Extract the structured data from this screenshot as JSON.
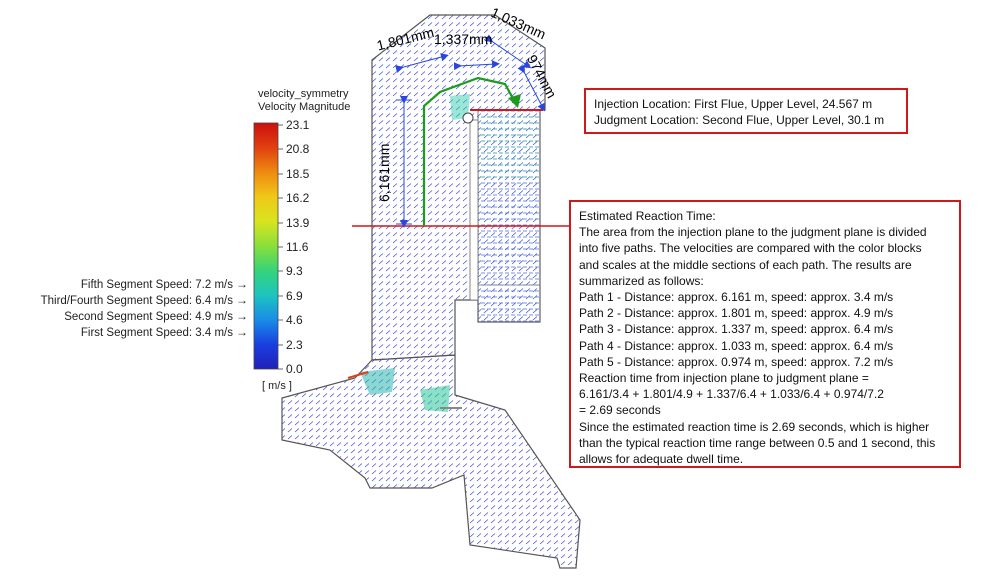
{
  "colorbar": {
    "title_line1": "velocity_symmetry",
    "title_line2": "Velocity Magnitude",
    "unit": "[ m/s ]",
    "ticks": [
      "23.1",
      "20.8",
      "18.5",
      "16.2",
      "13.9",
      "11.6",
      "9.3",
      "6.9",
      "4.6",
      "2.3",
      "0.0"
    ],
    "stops": [
      "#cc1010",
      "#e04010",
      "#ee8a10",
      "#f0c818",
      "#d8e420",
      "#8adf3a",
      "#35d47a",
      "#1ec4c0",
      "#1a8ce8",
      "#1a3fe0",
      "#2020b8"
    ]
  },
  "segment_speeds": [
    "Fifth Segment Speed: 7.2 m/s",
    "Third/Fourth Segment Speed: 6.4 m/s",
    "Second Segment Speed: 4.9 m/s",
    "First Segment Speed: 3.4 m/s"
  ],
  "dimensions": {
    "d1": "1,801mm",
    "d2": "1,337mm",
    "d3": "1,033mm",
    "d4": "974mm",
    "d5": "6,161mm"
  },
  "locations": {
    "injection": "Injection Location: First Flue, Upper Level, 24.567 m",
    "judgment": "Judgment Location: Second Flue, Upper Level, 30.1 m"
  },
  "reaction": {
    "lines": [
      "Estimated Reaction Time:",
      "The area from the injection plane to the judgment plane is divided",
      "into five paths. The velocities are compared with the color blocks",
      "and scales at the middle sections of each path. The results are",
      "summarized as follows:",
      "Path 1 - Distance: approx. 6.161 m, speed: approx. 3.4 m/s",
      "Path 2 - Distance: approx. 1.801 m, speed: approx. 4.9 m/s",
      "Path 3 - Distance: approx. 1.337 m, speed: approx. 6.4 m/s",
      "Path 4 - Distance: approx. 1.033 m, speed: approx. 6.4 m/s",
      "Path 5 - Distance: approx. 0.974 m, speed: approx. 7.2 m/s",
      "Reaction time from injection plane to judgment plane =",
      "6.161/3.4 + 1.801/4.9 + 1.337/6.4 + 1.033/6.4 + 0.974/7.2",
      "= 2.69 seconds",
      "Since the estimated reaction time is 2.69 seconds, which is higher",
      "than the typical reaction time range between 0.5 and 1 second, this",
      "allows for adequate dwell time."
    ]
  }
}
